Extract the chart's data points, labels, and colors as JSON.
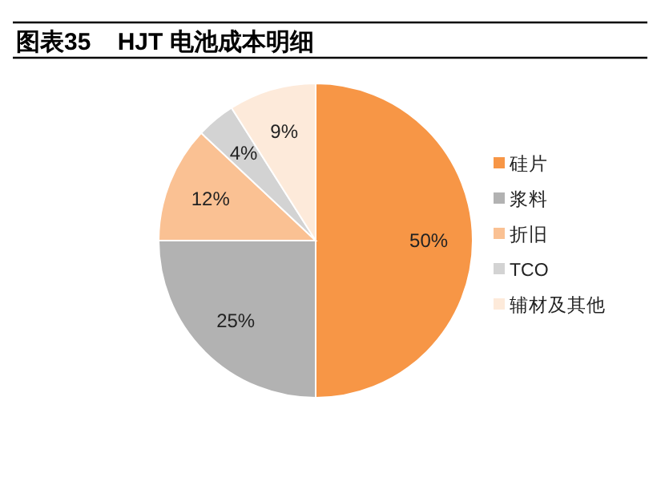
{
  "chart_data": {
    "type": "pie",
    "title": "图表35    HJT 电池成本明细",
    "categories": [
      "硅片",
      "浆料",
      "折旧",
      "TCO",
      "辅材及其他"
    ],
    "values": [
      50,
      25,
      12,
      4,
      9
    ],
    "colors": [
      "#f79646",
      "#b2b2b2",
      "#fac193",
      "#d3d3d3",
      "#fdeada"
    ],
    "value_labels": [
      "50%",
      "25%",
      "12%",
      "4%",
      "9%"
    ],
    "legend": "right"
  }
}
